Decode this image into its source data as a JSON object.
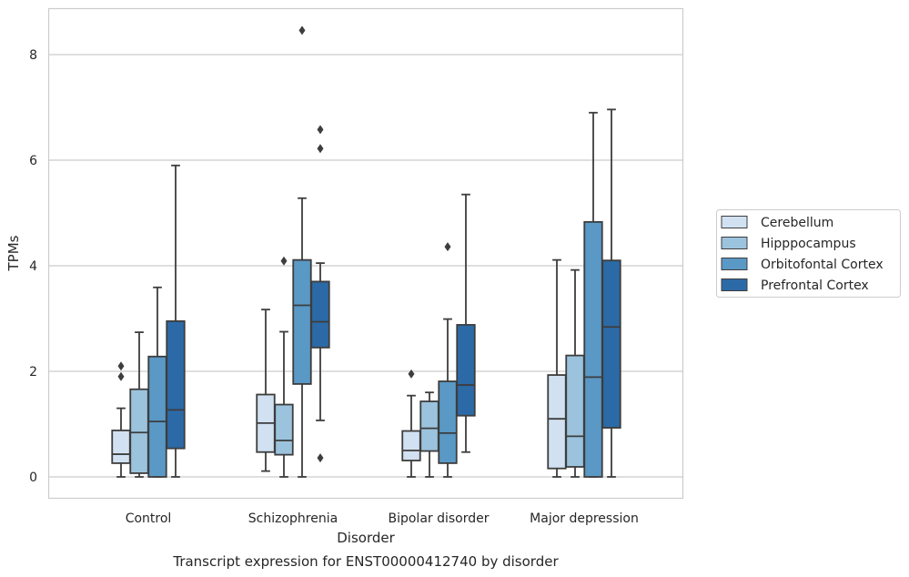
{
  "chart_data": {
    "type": "boxplot",
    "title": "Transcript expression for ENST00000412740 by disorder",
    "xlabel": "Disorder",
    "ylabel": "TPMs",
    "categories": [
      "Control",
      "Schizophrenia",
      "Bipolar disorder",
      "Major depression"
    ],
    "ylim": [
      -0.4,
      8.9
    ],
    "yticks": [
      0,
      2,
      4,
      6,
      8
    ],
    "grid": "horizontal",
    "legend_position": "right",
    "series": [
      {
        "name": "Cerebellum",
        "color": "#d1e1f1",
        "boxes": [
          {
            "whislo": 0.0,
            "q1": 0.26,
            "med": 0.43,
            "q3": 0.88,
            "whishi": 1.3,
            "fliers": [
              1.9,
              2.1
            ]
          },
          {
            "whislo": 0.11,
            "q1": 0.47,
            "med": 1.02,
            "q3": 1.56,
            "whishi": 3.17,
            "fliers": []
          },
          {
            "whislo": 0.0,
            "q1": 0.31,
            "med": 0.5,
            "q3": 0.87,
            "whishi": 1.54,
            "fliers": [
              1.95
            ]
          },
          {
            "whislo": 0.0,
            "q1": 0.16,
            "med": 1.1,
            "q3": 1.93,
            "whishi": 4.11,
            "fliers": []
          }
        ]
      },
      {
        "name": "Hipppocampus",
        "color": "#9cc3dd",
        "boxes": [
          {
            "whislo": 0.0,
            "q1": 0.07,
            "med": 0.84,
            "q3": 1.66,
            "whishi": 2.74,
            "fliers": []
          },
          {
            "whislo": 0.0,
            "q1": 0.42,
            "med": 0.69,
            "q3": 1.37,
            "whishi": 2.75,
            "fliers": [
              4.09
            ]
          },
          {
            "whislo": 0.0,
            "q1": 0.49,
            "med": 0.92,
            "q3": 1.43,
            "whishi": 1.6,
            "fliers": []
          },
          {
            "whislo": 0.0,
            "q1": 0.19,
            "med": 0.77,
            "q3": 2.3,
            "whishi": 3.92,
            "fliers": []
          }
        ]
      },
      {
        "name": "Orbitofontal Cortex",
        "color": "#5a98c5",
        "boxes": [
          {
            "whislo": 0.0,
            "q1": 0.0,
            "med": 1.05,
            "q3": 2.28,
            "whishi": 3.59,
            "fliers": []
          },
          {
            "whislo": 0.0,
            "q1": 1.76,
            "med": 3.25,
            "q3": 4.11,
            "whishi": 5.28,
            "fliers": [
              8.46
            ]
          },
          {
            "whislo": 0.0,
            "q1": 0.26,
            "med": 0.83,
            "q3": 1.81,
            "whishi": 2.99,
            "fliers": [
              4.36
            ]
          },
          {
            "whislo": 0.0,
            "q1": 0.0,
            "med": 1.89,
            "q3": 4.83,
            "whishi": 6.9,
            "fliers": []
          }
        ]
      },
      {
        "name": "Prefrontal Cortex",
        "color": "#2c6aa7",
        "boxes": [
          {
            "whislo": 0.0,
            "q1": 0.54,
            "med": 1.27,
            "q3": 2.95,
            "whishi": 5.9,
            "fliers": []
          },
          {
            "whislo": 1.07,
            "q1": 2.45,
            "med": 2.94,
            "q3": 3.7,
            "whishi": 4.05,
            "fliers": [
              0.36,
              6.22,
              6.58
            ]
          },
          {
            "whislo": 0.47,
            "q1": 1.16,
            "med": 1.74,
            "q3": 2.88,
            "whishi": 5.35,
            "fliers": []
          },
          {
            "whislo": 0.0,
            "q1": 0.93,
            "med": 2.84,
            "q3": 4.1,
            "whishi": 6.96,
            "fliers": []
          }
        ]
      }
    ]
  }
}
